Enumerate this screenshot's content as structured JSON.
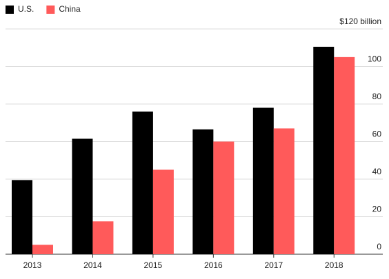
{
  "chart_data": {
    "type": "bar",
    "categories": [
      "2013",
      "2014",
      "2015",
      "2016",
      "2017",
      "2018"
    ],
    "series": [
      {
        "name": "U.S.",
        "color": "#000000",
        "values": [
          39.5,
          61.5,
          76,
          66.5,
          78,
          110.5
        ]
      },
      {
        "name": "China",
        "color": "#ff5a5a",
        "values": [
          5,
          17.5,
          45,
          60,
          67,
          105
        ]
      }
    ],
    "ylim": [
      0,
      120
    ],
    "yticks": [
      0,
      20,
      40,
      60,
      80,
      100,
      {
        "value": 120,
        "label": "$120 billion"
      }
    ],
    "grid": true,
    "legend": "top-left"
  }
}
